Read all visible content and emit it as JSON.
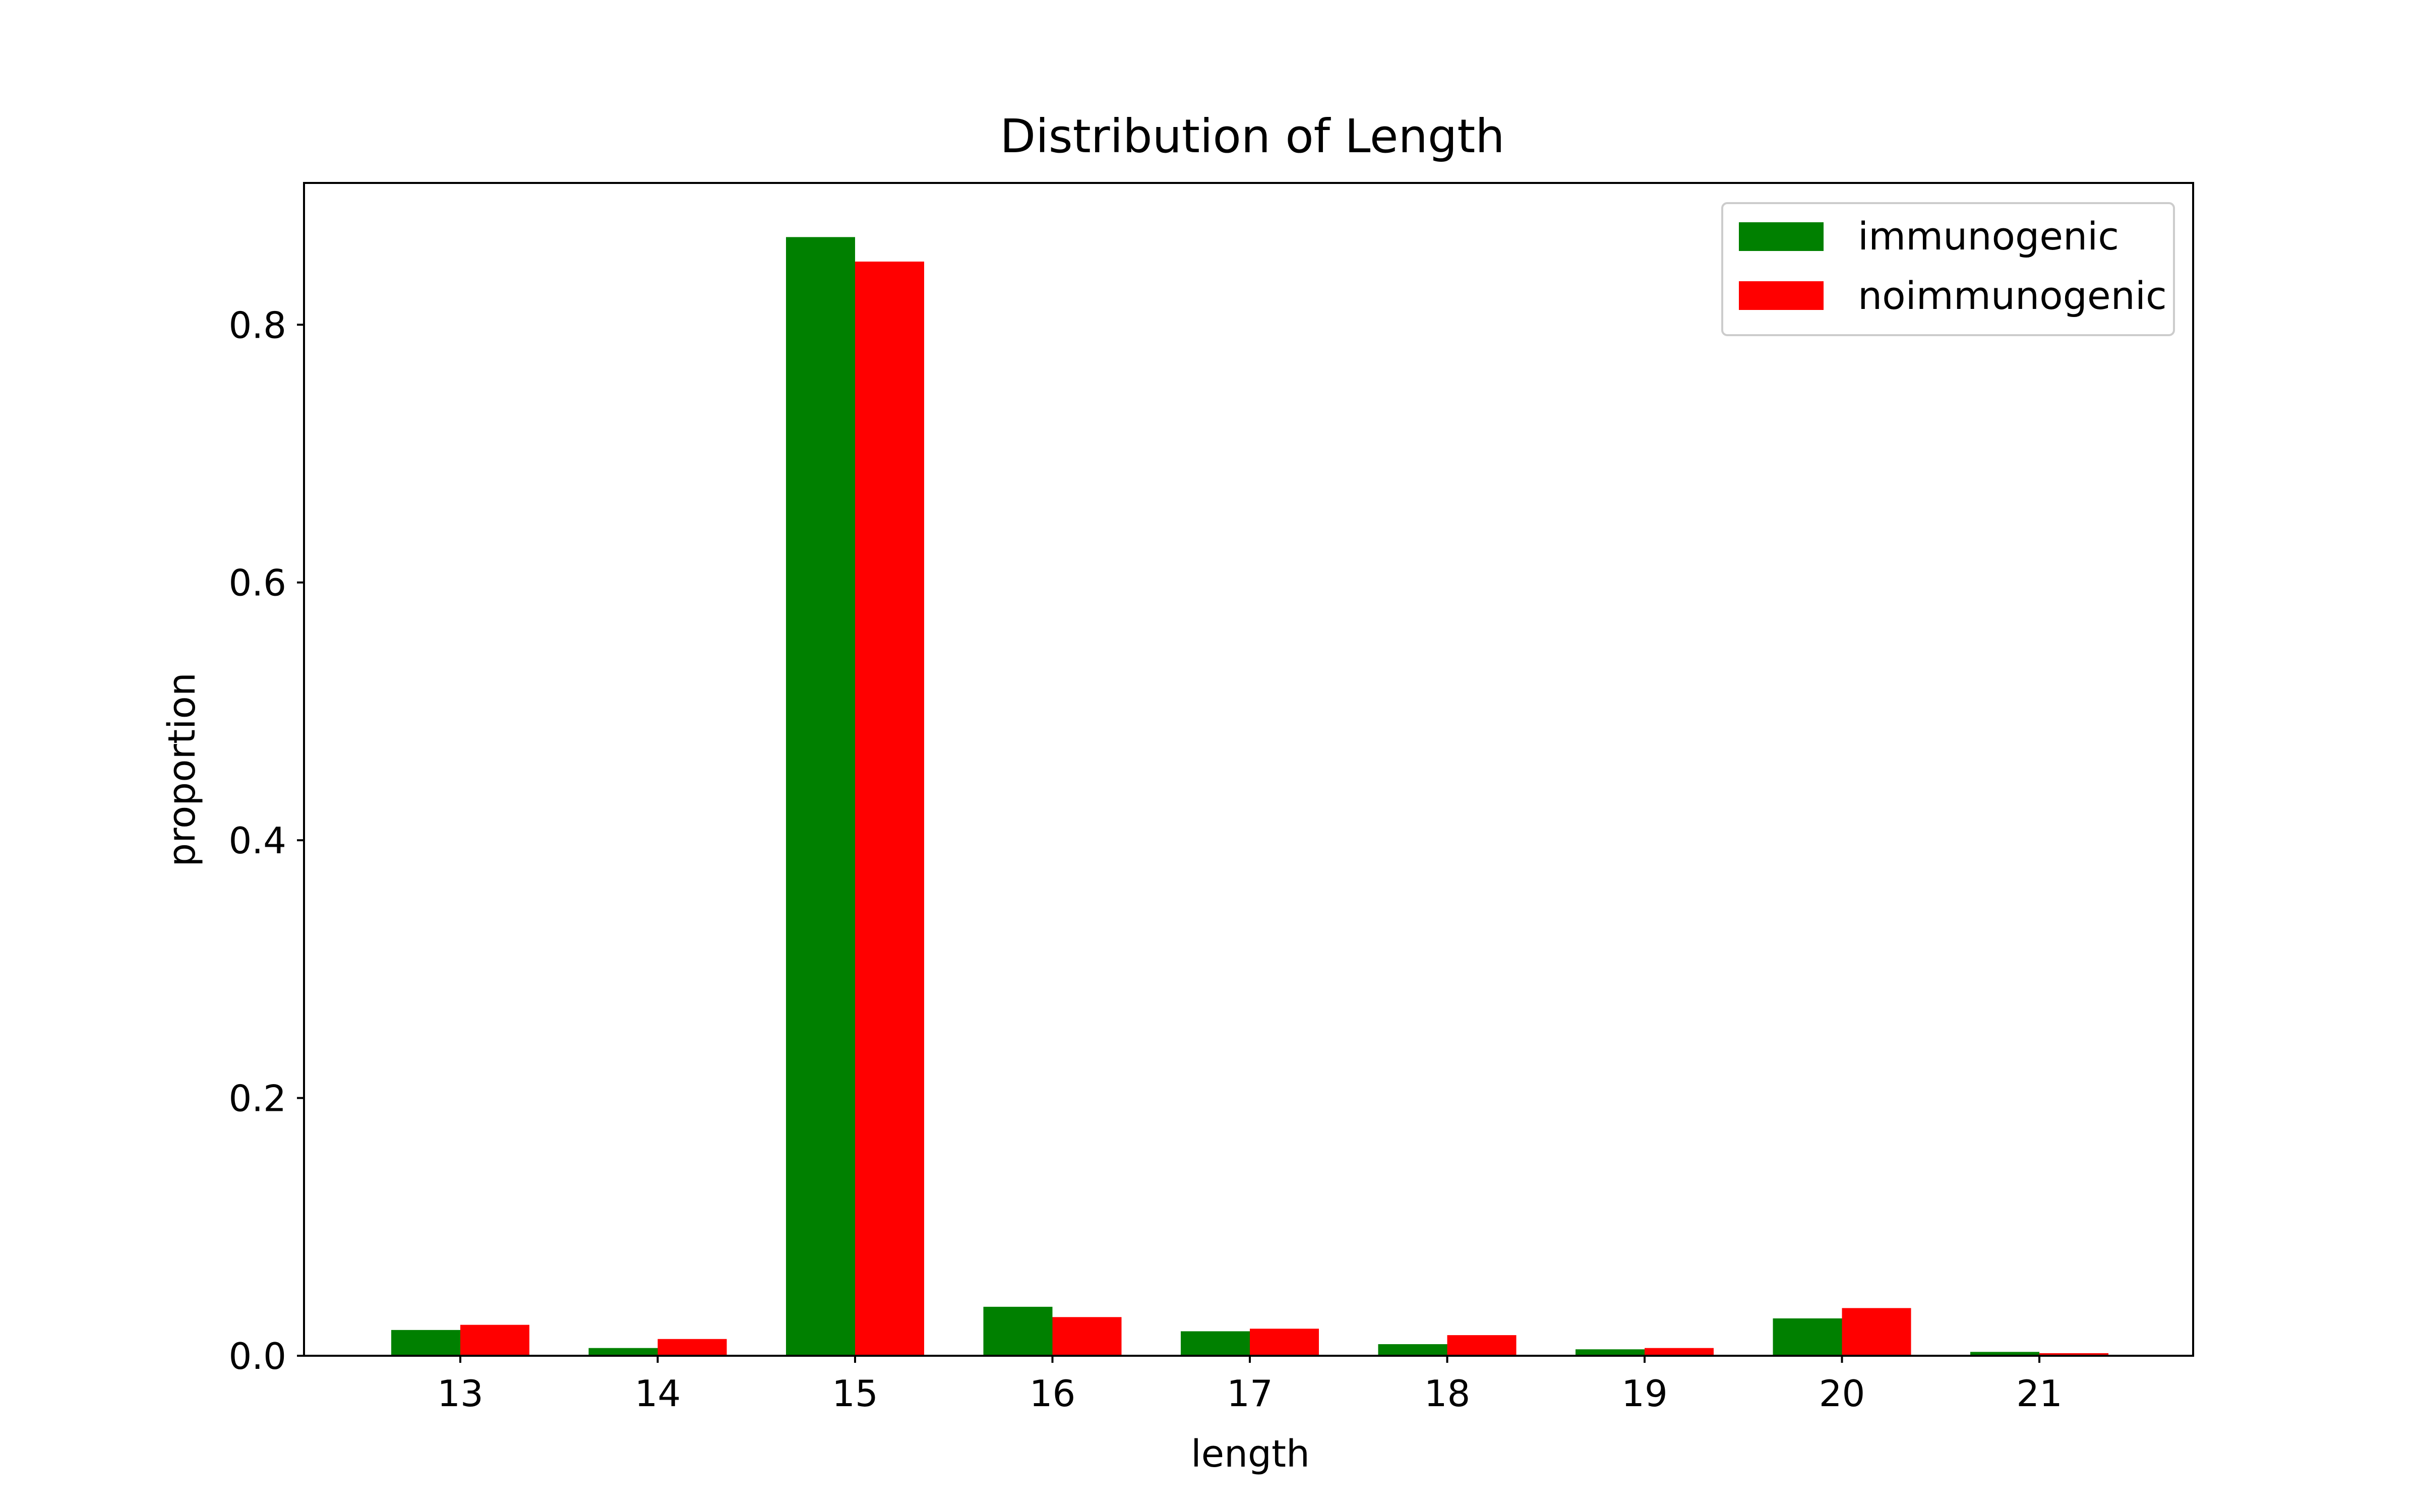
{
  "chart_data": {
    "type": "bar",
    "title": "Distribution of Length",
    "xlabel": "length",
    "ylabel": "proportion",
    "categories": [
      "13",
      "14",
      "15",
      "16",
      "17",
      "18",
      "19",
      "20",
      "21"
    ],
    "series": [
      {
        "name": "immunogenic",
        "color": "#008000",
        "values": [
          0.02,
          0.006,
          0.868,
          0.038,
          0.019,
          0.009,
          0.005,
          0.029,
          0.003
        ]
      },
      {
        "name": "noimmunogenic",
        "color": "#ff0000",
        "values": [
          0.024,
          0.013,
          0.849,
          0.03,
          0.021,
          0.016,
          0.006,
          0.037,
          0.002
        ]
      }
    ],
    "ylim": [
      0,
      0.91
    ],
    "yticks": [
      "0.0",
      "0.2",
      "0.4",
      "0.6",
      "0.8"
    ],
    "grid": false,
    "legend_position": "top-right"
  }
}
